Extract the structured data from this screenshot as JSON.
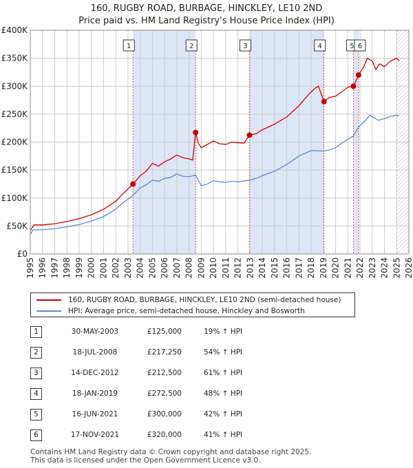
{
  "title": "160, RUGBY ROAD, BURBAGE, HINCKLEY, LE10 2ND",
  "subtitle": "Price paid vs. HM Land Registry's House Price Index (HPI)",
  "colors": {
    "property": "#cc0000",
    "hpi": "#5b8ccc",
    "shade": "#dde6f5",
    "grid": "#cccccc"
  },
  "legend": {
    "property_label": "160, RUGBY ROAD, BURBAGE, HINCKLEY, LE10 2ND (semi-detached house)",
    "hpi_label": "HPI: Average price, semi-detached house, Hinckley and Bosworth"
  },
  "sales": [
    {
      "num": "1",
      "date": "30-MAY-2003",
      "price": "£125,000",
      "hpi": "19% ↑ HPI"
    },
    {
      "num": "2",
      "date": "18-JUL-2008",
      "price": "£217,250",
      "hpi": "54% ↑ HPI"
    },
    {
      "num": "3",
      "date": "14-DEC-2012",
      "price": "£212,500",
      "hpi": "61% ↑ HPI"
    },
    {
      "num": "4",
      "date": "18-JAN-2019",
      "price": "£272,500",
      "hpi": "48% ↑ HPI"
    },
    {
      "num": "5",
      "date": "16-JUN-2021",
      "price": "£300,000",
      "hpi": "42% ↑ HPI"
    },
    {
      "num": "6",
      "date": "17-NOV-2021",
      "price": "£320,000",
      "hpi": "41% ↑ HPI"
    }
  ],
  "footer": {
    "line1": "Contains HM Land Registry data © Crown copyright and database right 2025.",
    "line2": "This data is licensed under the Open Government Licence v3.0."
  },
  "chart_data": {
    "type": "line",
    "title": "160, RUGBY ROAD, BURBAGE, HINCKLEY, LE10 2ND",
    "subtitle": "Price paid vs. HM Land Registry's House Price Index (HPI)",
    "xlim": [
      1995,
      2026
    ],
    "ylim": [
      0,
      400000
    ],
    "x_ticks": [
      "1995",
      "1996",
      "1997",
      "1998",
      "1999",
      "2000",
      "2001",
      "2002",
      "2003",
      "2004",
      "2005",
      "2006",
      "2007",
      "2008",
      "2009",
      "2010",
      "2011",
      "2012",
      "2013",
      "2014",
      "2015",
      "2016",
      "2017",
      "2018",
      "2019",
      "2020",
      "2021",
      "2022",
      "2023",
      "2024",
      "2025",
      "2026"
    ],
    "y_ticks": [
      {
        "value": 0,
        "label": "£0"
      },
      {
        "value": 50000,
        "label": "£50K"
      },
      {
        "value": 100000,
        "label": "£100K"
      },
      {
        "value": 150000,
        "label": "£150K"
      },
      {
        "value": 200000,
        "label": "£200K"
      },
      {
        "value": 250000,
        "label": "£250K"
      },
      {
        "value": 300000,
        "label": "£300K"
      },
      {
        "value": 350000,
        "label": "£350K"
      },
      {
        "value": 400000,
        "label": "£400K"
      }
    ],
    "grid": true,
    "legend_position": "below-chart",
    "shaded_ranges": [
      [
        2003.41,
        2008.54
      ],
      [
        2012.95,
        2019.05
      ],
      [
        2021.46,
        2021.88
      ]
    ],
    "hatched_from": 2025.0,
    "series": [
      {
        "name": "160, RUGBY ROAD, BURBAGE, HINCKLEY, LE10 2ND (semi-detached house)",
        "color": "#cc0000",
        "points": [
          [
            1995.0,
            42000
          ],
          [
            1995.3,
            52000
          ],
          [
            1996.0,
            52000
          ],
          [
            1997.0,
            54000
          ],
          [
            1998.0,
            58000
          ],
          [
            1999.0,
            63000
          ],
          [
            2000.0,
            70000
          ],
          [
            2001.0,
            80000
          ],
          [
            2002.0,
            94000
          ],
          [
            2002.5,
            106000
          ],
          [
            2003.41,
            125000
          ],
          [
            2004.0,
            140000
          ],
          [
            2004.5,
            148000
          ],
          [
            2005.0,
            162000
          ],
          [
            2005.5,
            157000
          ],
          [
            2006.0,
            165000
          ],
          [
            2006.5,
            170000
          ],
          [
            2007.0,
            177000
          ],
          [
            2007.5,
            172000
          ],
          [
            2008.0,
            170000
          ],
          [
            2008.3,
            168000
          ],
          [
            2008.54,
            217250
          ],
          [
            2008.75,
            198000
          ],
          [
            2009.0,
            190000
          ],
          [
            2009.5,
            196000
          ],
          [
            2010.0,
            202000
          ],
          [
            2010.5,
            197000
          ],
          [
            2011.0,
            196000
          ],
          [
            2011.5,
            200000
          ],
          [
            2012.0,
            199000
          ],
          [
            2012.5,
            198000
          ],
          [
            2012.95,
            212500
          ],
          [
            2013.5,
            215000
          ],
          [
            2014.0,
            222000
          ],
          [
            2015.0,
            232000
          ],
          [
            2016.0,
            245000
          ],
          [
            2017.0,
            265000
          ],
          [
            2017.5,
            278000
          ],
          [
            2018.0,
            290000
          ],
          [
            2018.3,
            296000
          ],
          [
            2018.6,
            300000
          ],
          [
            2019.05,
            272500
          ],
          [
            2019.5,
            280000
          ],
          [
            2020.0,
            282000
          ],
          [
            2020.5,
            290000
          ],
          [
            2021.0,
            298000
          ],
          [
            2021.46,
            300000
          ],
          [
            2021.88,
            320000
          ],
          [
            2022.3,
            335000
          ],
          [
            2022.6,
            350000
          ],
          [
            2023.0,
            345000
          ],
          [
            2023.3,
            330000
          ],
          [
            2023.6,
            340000
          ],
          [
            2024.0,
            335000
          ],
          [
            2024.5,
            345000
          ],
          [
            2025.0,
            350000
          ],
          [
            2025.2,
            345000
          ]
        ]
      },
      {
        "name": "HPI: Average price, semi-detached house, Hinckley and Bosworth",
        "color": "#5b8ccc",
        "points": [
          [
            1995.0,
            34000
          ],
          [
            1995.2,
            43000
          ],
          [
            1996.0,
            43500
          ],
          [
            1997.0,
            45000
          ],
          [
            1998.0,
            48500
          ],
          [
            1999.0,
            52500
          ],
          [
            2000.0,
            59000
          ],
          [
            2001.0,
            67000
          ],
          [
            2002.0,
            80000
          ],
          [
            2002.5,
            90000
          ],
          [
            2003.41,
            105000
          ],
          [
            2004.0,
            118000
          ],
          [
            2004.5,
            124000
          ],
          [
            2005.0,
            132000
          ],
          [
            2005.5,
            130000
          ],
          [
            2006.0,
            135000
          ],
          [
            2006.5,
            137000
          ],
          [
            2007.0,
            143000
          ],
          [
            2007.5,
            139000
          ],
          [
            2008.0,
            138000
          ],
          [
            2008.54,
            141000
          ],
          [
            2009.0,
            122000
          ],
          [
            2009.5,
            125000
          ],
          [
            2010.0,
            131000
          ],
          [
            2010.5,
            129000
          ],
          [
            2011.0,
            128000
          ],
          [
            2011.5,
            130000
          ],
          [
            2012.0,
            129000
          ],
          [
            2012.95,
            132000
          ],
          [
            2013.5,
            135000
          ],
          [
            2014.0,
            140000
          ],
          [
            2015.0,
            148000
          ],
          [
            2016.0,
            160000
          ],
          [
            2017.0,
            175000
          ],
          [
            2018.0,
            185000
          ],
          [
            2019.05,
            184000
          ],
          [
            2019.5,
            186000
          ],
          [
            2020.0,
            190000
          ],
          [
            2020.5,
            198000
          ],
          [
            2021.0,
            205000
          ],
          [
            2021.46,
            211000
          ],
          [
            2021.88,
            227000
          ],
          [
            2022.5,
            240000
          ],
          [
            2022.8,
            248000
          ],
          [
            2023.2,
            243000
          ],
          [
            2023.5,
            239000
          ],
          [
            2024.0,
            242000
          ],
          [
            2024.5,
            246000
          ],
          [
            2025.0,
            248000
          ],
          [
            2025.2,
            247000
          ]
        ]
      }
    ],
    "sale_markers": [
      {
        "label": "1",
        "x": 2003.41,
        "y": 125000
      },
      {
        "label": "2",
        "x": 2008.54,
        "y": 217250
      },
      {
        "label": "3",
        "x": 2012.95,
        "y": 212500
      },
      {
        "label": "4",
        "x": 2019.05,
        "y": 272500
      },
      {
        "label": "5",
        "x": 2021.46,
        "y": 300000
      },
      {
        "label": "6",
        "x": 2021.88,
        "y": 320000
      }
    ]
  }
}
